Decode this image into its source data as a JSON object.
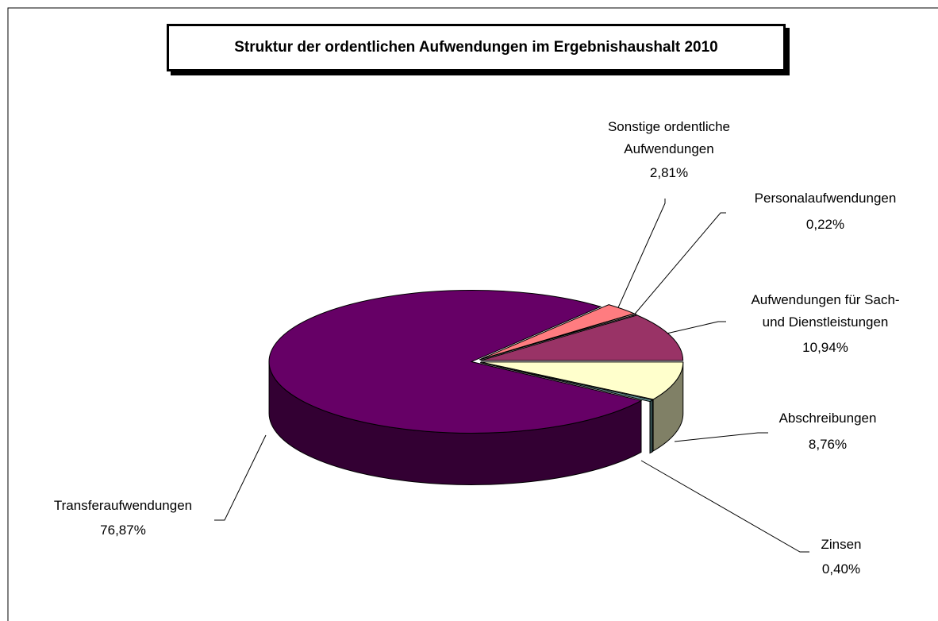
{
  "chart_data": {
    "type": "pie3d",
    "title": "Struktur der ordentlichen Aufwendungen im Ergebnishaushalt 2010",
    "categories": [
      "Abschreibungen",
      "Zinsen",
      "Transferaufwendungen",
      "Sonstige ordentliche\nAufwendungen",
      "Personalaufwendungen",
      "Aufwendungen für Sach-\nund Dienstleistungen"
    ],
    "values": [
      8.76,
      0.4,
      76.87,
      2.81,
      0.22,
      10.94
    ],
    "value_labels": [
      "8,76%",
      "0,40%",
      "76,87%",
      "2,81%",
      "0,22%",
      "10,94%"
    ],
    "colors": [
      "#FFFFCC",
      "#669999",
      "#660066",
      "#FF7C80",
      "#FFCCCC",
      "#993366"
    ]
  }
}
